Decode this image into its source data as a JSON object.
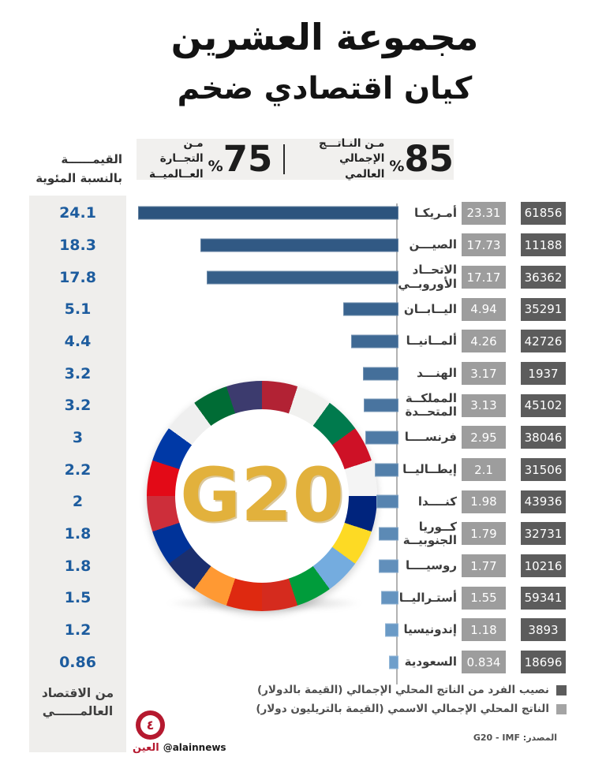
{
  "title": {
    "line1": "مجموعة العشرين",
    "line2": "كيان اقتصادي ضخم"
  },
  "stats": [
    {
      "value": "85",
      "percent": "%",
      "label_line1": "مـن النـاتـــج",
      "label_line2": "الإجمالي العالمي"
    },
    {
      "value": "75",
      "percent": "%",
      "label_line1": "مـن التجــارة",
      "label_line2": "العــالميــة"
    }
  ],
  "left_column": {
    "header_line1": "القيمــــــة",
    "header_line2": "بالنسبة المئوية",
    "footer_line1": "من الاقتصاد",
    "footer_line2": "العالمــــــي"
  },
  "chart_data": {
    "type": "bar",
    "orientation": "horizontal-rtl",
    "title": "مجموعة العشرين - كيان اقتصادي ضخم",
    "max_value": 23.31,
    "bar_colors": {
      "start": "#2c547e",
      "end": "#6f9fcb"
    },
    "axis_color": "#b2b2b2",
    "categories": [
      "أمـريكـا",
      "الصيـــن",
      "الاتحــاد الأوروبــي",
      "اليــابــان",
      "ألمــانيــا",
      "الهنـــد",
      "المملكــة المتحــدة",
      "فرنســــا",
      "إيطــاليــا",
      "كنــــدا",
      "كــوريا الجنوبيــة",
      "روسيــــا",
      "أستـراليــا",
      "إندونيسيا",
      "السعودية"
    ],
    "series": [
      {
        "name": "النسبة من الاقتصاد العالمي %",
        "values": [
          24.1,
          18.3,
          17.8,
          5.1,
          4.4,
          3.2,
          3.2,
          3,
          2.2,
          2,
          1.8,
          1.8,
          1.5,
          1.2,
          0.86
        ]
      },
      {
        "name": "الناتج المحلي الإجمالي الاسمي (تريليون دولار)",
        "values": [
          23.31,
          17.73,
          17.17,
          4.94,
          4.26,
          3.17,
          3.13,
          2.95,
          2.1,
          1.98,
          1.79,
          1.77,
          1.55,
          1.18,
          0.834
        ]
      },
      {
        "name": "نصيب الفرد من الناتج المحلي الإجمالي (دولار)",
        "values": [
          61856,
          11188,
          36362,
          35291,
          42726,
          1937,
          45102,
          38046,
          31506,
          43936,
          32731,
          10216,
          59341,
          3893,
          18696
        ]
      }
    ],
    "rows": [
      {
        "country": "أمـريكـا",
        "share_pct": "24.1",
        "gdp_trillion": "23.31",
        "gdp_per_capita": "61856",
        "value": 23.31
      },
      {
        "country": "الصيـــن",
        "share_pct": "18.3",
        "gdp_trillion": "17.73",
        "gdp_per_capita": "11188",
        "value": 17.73
      },
      {
        "country": "الاتحــاد الأوروبــي",
        "share_pct": "17.8",
        "gdp_trillion": "17.17",
        "gdp_per_capita": "36362",
        "value": 17.17
      },
      {
        "country": "اليــابــان",
        "share_pct": "5.1",
        "gdp_trillion": "4.94",
        "gdp_per_capita": "35291",
        "value": 4.94
      },
      {
        "country": "ألمــانيــا",
        "share_pct": "4.4",
        "gdp_trillion": "4.26",
        "gdp_per_capita": "42726",
        "value": 4.26
      },
      {
        "country": "الهنـــد",
        "share_pct": "3.2",
        "gdp_trillion": "3.17",
        "gdp_per_capita": "1937",
        "value": 3.17
      },
      {
        "country": "المملكــة المتحــدة",
        "share_pct": "3.2",
        "gdp_trillion": "3.13",
        "gdp_per_capita": "45102",
        "value": 3.13
      },
      {
        "country": "فرنســــا",
        "share_pct": "3",
        "gdp_trillion": "2.95",
        "gdp_per_capita": "38046",
        "value": 2.95
      },
      {
        "country": "إيطــاليــا",
        "share_pct": "2.2",
        "gdp_trillion": "2.1",
        "gdp_per_capita": "31506",
        "value": 2.1
      },
      {
        "country": "كنــــدا",
        "share_pct": "2",
        "gdp_trillion": "1.98",
        "gdp_per_capita": "43936",
        "value": 1.98
      },
      {
        "country": "كــوريا الجنوبيــة",
        "share_pct": "1.8",
        "gdp_trillion": "1.79",
        "gdp_per_capita": "32731",
        "value": 1.79
      },
      {
        "country": "روسيــــا",
        "share_pct": "1.8",
        "gdp_trillion": "1.77",
        "gdp_per_capita": "10216",
        "value": 1.77
      },
      {
        "country": "أستـراليــا",
        "share_pct": "1.5",
        "gdp_trillion": "1.55",
        "gdp_per_capita": "59341",
        "value": 1.55
      },
      {
        "country": "إندونيسيا",
        "share_pct": "1.2",
        "gdp_trillion": "1.18",
        "gdp_per_capita": "3893",
        "value": 1.18
      },
      {
        "country": "السعودية",
        "share_pct": "0.86",
        "gdp_trillion": "0.834",
        "gdp_per_capita": "18696",
        "value": 0.834
      }
    ],
    "value_box_colors": {
      "gdp_trillion": "#9d9d9d",
      "gdp_per_capita": "#5c5c5c"
    }
  },
  "legend": [
    {
      "color": "#5c5c5c",
      "label": "نصيب الفرد من الناتج المحلي الإجمالي (القيمة بالدولار)"
    },
    {
      "color": "#a4a4a4",
      "label": "الناتج المحلي الإجمالي الاسمي (القيمة بالتريليون دولار)"
    }
  ],
  "source": "المصدر: G20 - IMF",
  "logo": {
    "g20": "G20"
  },
  "brand": {
    "numeral": "٤",
    "name": "العين",
    "handle": "@alainnews"
  }
}
